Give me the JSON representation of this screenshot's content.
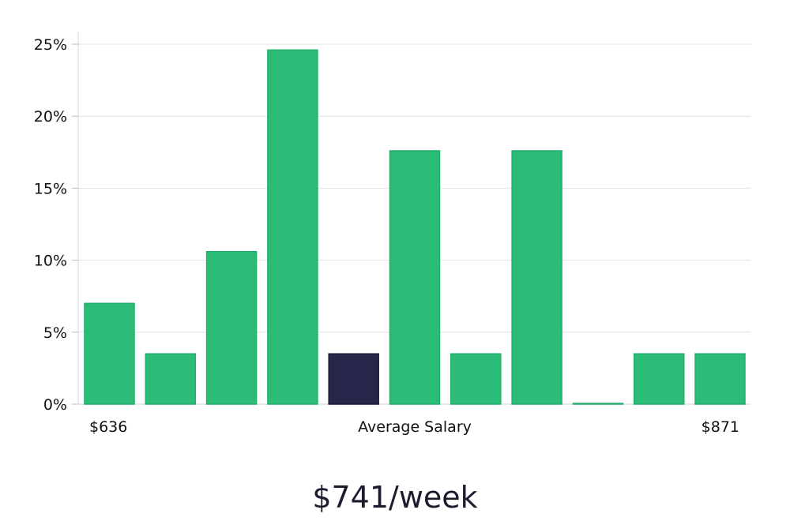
{
  "chart_data": {
    "type": "bar",
    "values": [
      7.0,
      3.5,
      10.6,
      24.6,
      3.5,
      17.6,
      3.5,
      17.6,
      0.0,
      3.5,
      3.5
    ],
    "highlight_index": 4,
    "ylim": [
      0,
      25
    ],
    "y_ticks": [
      "0%",
      "5%",
      "10%",
      "15%",
      "20%",
      "25%"
    ],
    "x_labels": {
      "left": "$636",
      "center": "Average Salary",
      "right": "$871"
    },
    "grid": true,
    "bar_color": "#2bbd77",
    "highlight_color": "#28254a"
  },
  "summary": "$741/week"
}
